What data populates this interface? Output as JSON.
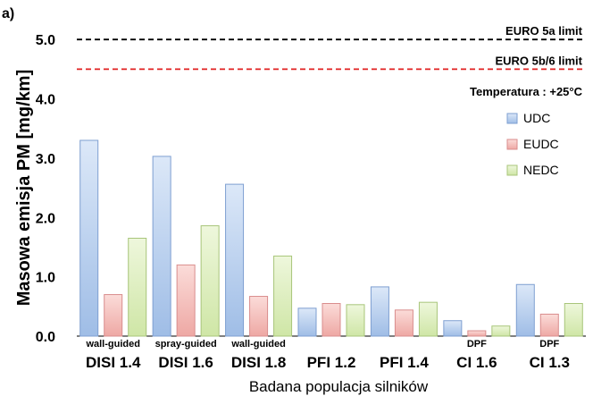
{
  "panel_label": "a)",
  "colors": {
    "UDC": "#c6d9f1",
    "EUDC": "#f4c7c3",
    "NEDC": "#e2f0c8",
    "UDC_stroke": "#7e9fd1",
    "EUDC_stroke": "#d98d8d",
    "NEDC_stroke": "#a8c57a",
    "euro5a": "#000000",
    "euro5b6": "#e02020"
  },
  "chart_data": {
    "type": "bar",
    "title": "",
    "xlabel": "Badana populacja silników",
    "ylabel": "Masowa emisja PM [mg/km]",
    "ylim": [
      0,
      5.5
    ],
    "yticks": [
      "0.0",
      "1.0",
      "2.0",
      "3.0",
      "4.0",
      "5.0"
    ],
    "grid": false,
    "legend_position": "right",
    "categories": [
      "DISI 1.4",
      "DISI 1.6",
      "DISI 1.8",
      "PFI 1.2",
      "PFI 1.4",
      "CI 1.6",
      "CI 1.3"
    ],
    "sublabels": [
      "wall-guided",
      "spray-guided",
      "wall-guided",
      "",
      "",
      "DPF",
      "DPF"
    ],
    "series": [
      {
        "name": "UDC",
        "values": [
          3.3,
          3.03,
          2.56,
          0.47,
          0.83,
          0.26,
          0.87
        ]
      },
      {
        "name": "EUDC",
        "values": [
          0.7,
          1.2,
          0.67,
          0.55,
          0.44,
          0.09,
          0.37
        ]
      },
      {
        "name": "NEDC",
        "values": [
          1.65,
          1.86,
          1.35,
          0.53,
          0.57,
          0.17,
          0.55
        ]
      }
    ],
    "reference_lines": [
      {
        "label": "EURO 5a limit",
        "value": 5.0
      },
      {
        "label": "EURO 5b/6 limit",
        "value": 4.5
      }
    ],
    "annotation": "Temperatura : +25°C"
  }
}
